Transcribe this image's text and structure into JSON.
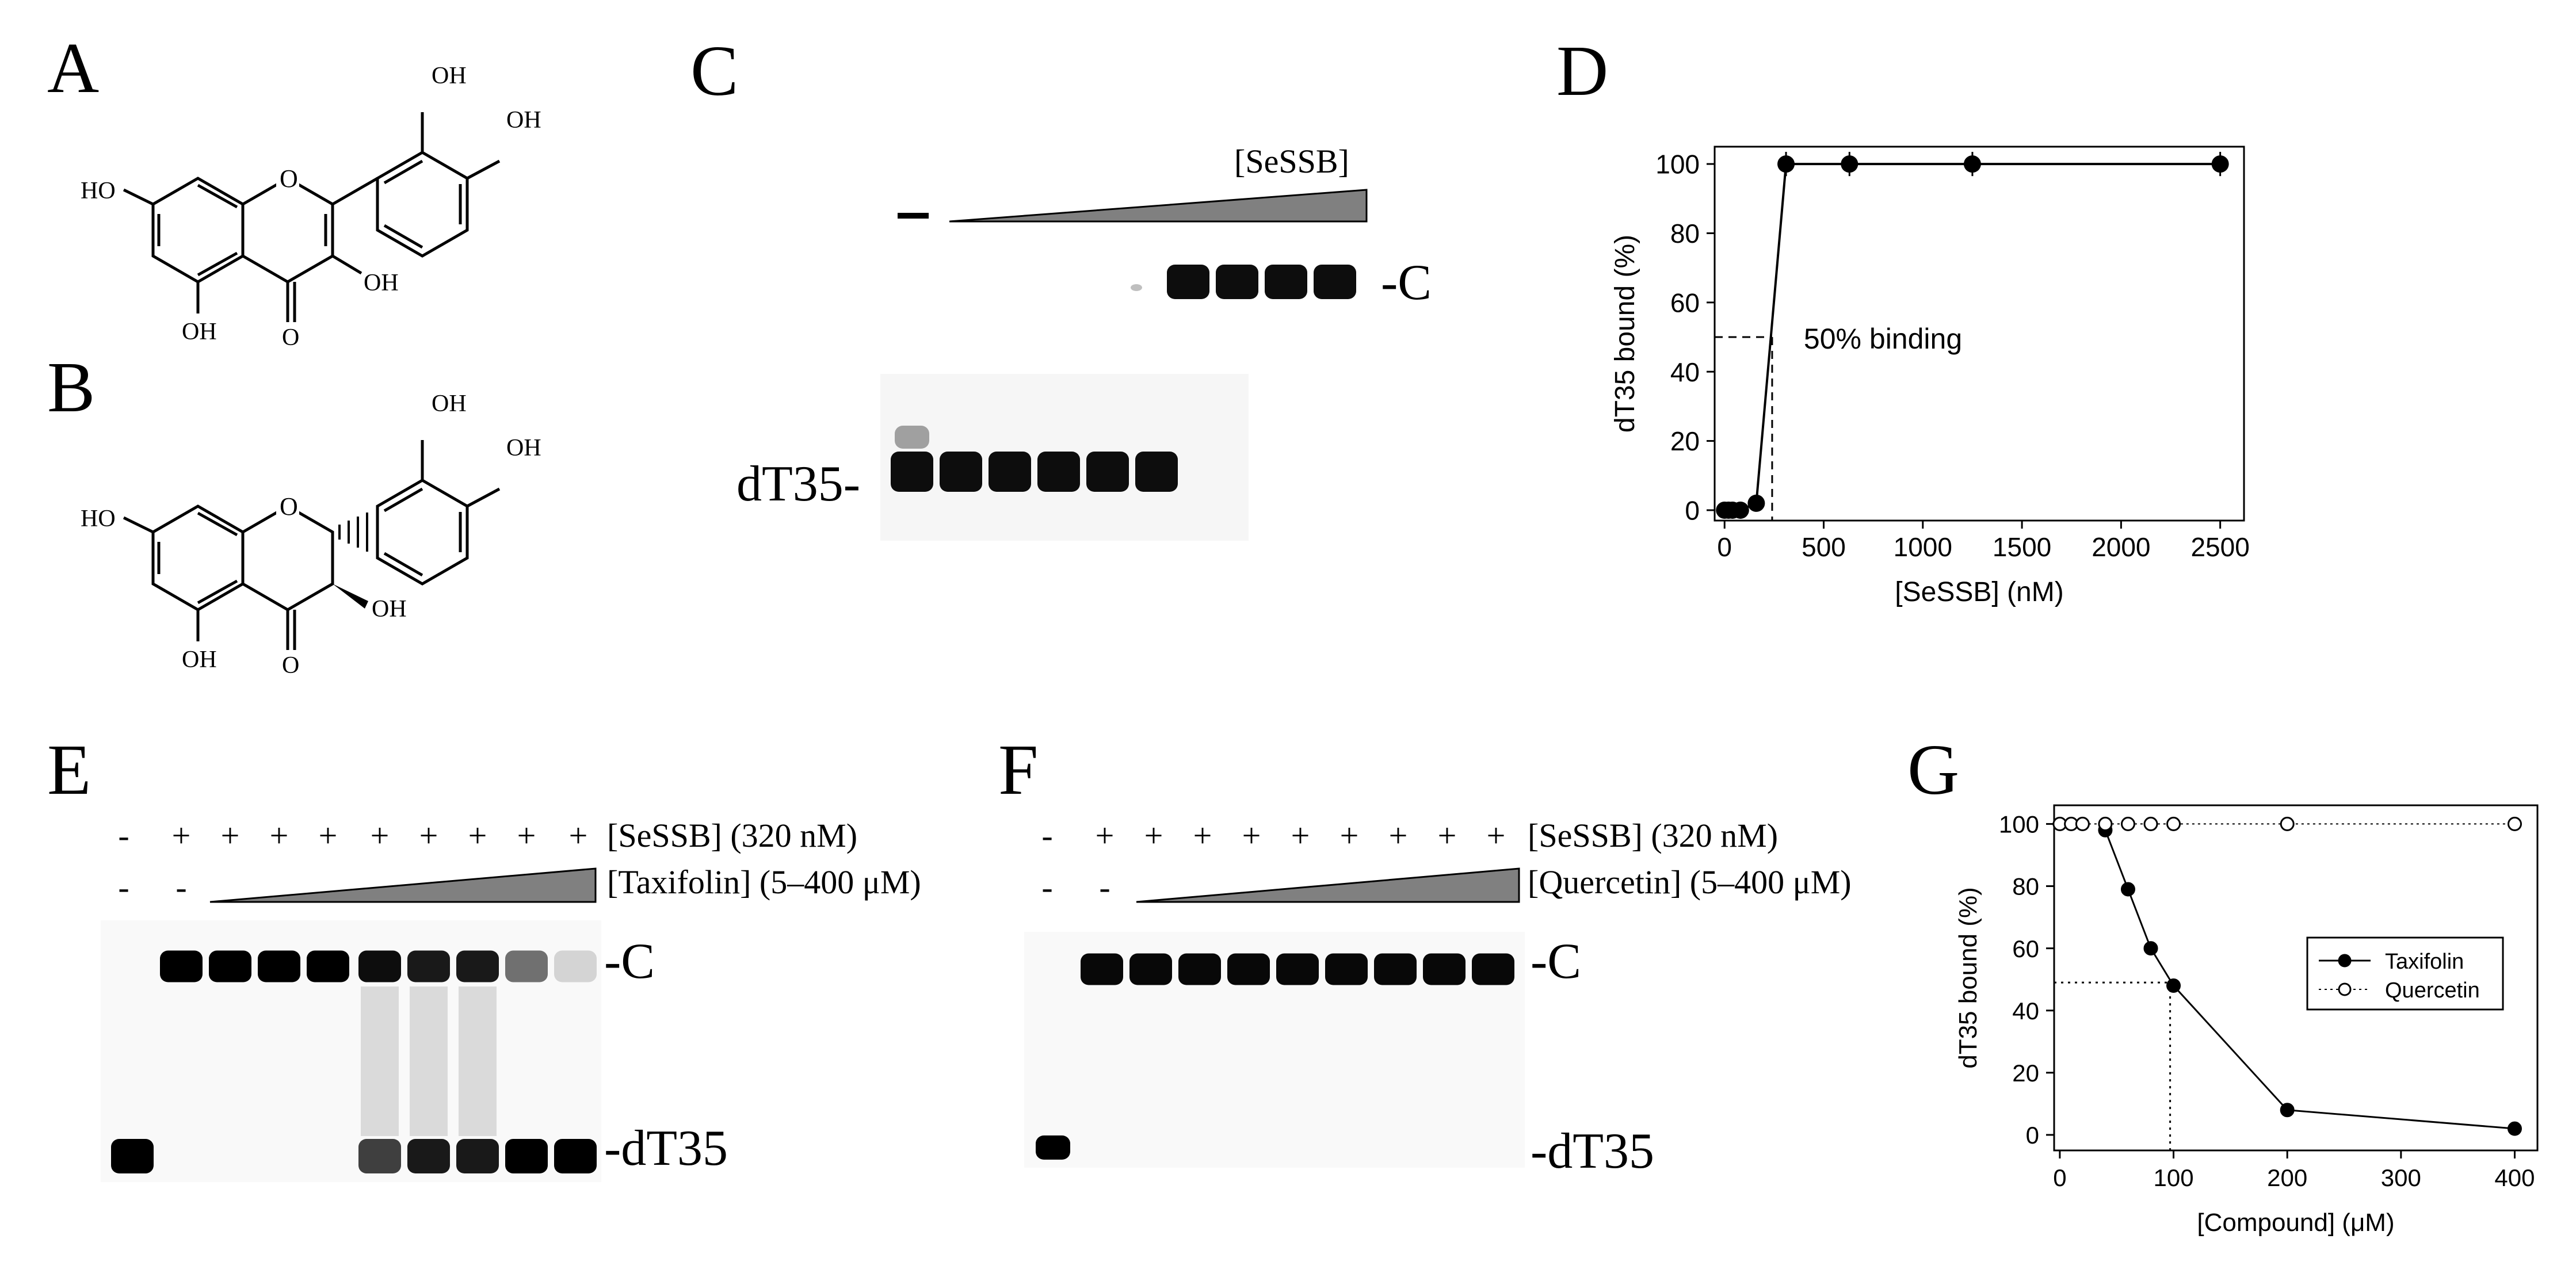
{
  "panels": {
    "A": {
      "label": "A",
      "substituents": [
        "OH",
        "OH",
        "HO",
        "OH",
        "OH",
        "O"
      ]
    },
    "B": {
      "label": "B",
      "substituents": [
        "OH",
        "OH",
        "HO",
        "OH",
        "OH",
        "O"
      ]
    },
    "C": {
      "label": "C",
      "minus_label": "–",
      "wedge_label": "[SeSSB]",
      "complex_label": "-C",
      "free_label": "dT35-"
    },
    "E": {
      "label": "E",
      "row1_signs": [
        "-",
        "+",
        "+",
        "+",
        "+",
        "+",
        "+",
        "+",
        "+",
        "+"
      ],
      "row1_label": "[SeSSB] (320 nM)",
      "row2_signs": [
        "-",
        "-"
      ],
      "row2_label": "[Taxifolin] (5–400 μM)",
      "complex_label": "-C",
      "free_label": "-dT35"
    },
    "F": {
      "label": "F",
      "row1_signs": [
        "-",
        "+",
        "+",
        "+",
        "+",
        "+",
        "+",
        "+",
        "+",
        "+"
      ],
      "row1_label": "[SeSSB] (320 nM)",
      "row2_signs": [
        "-",
        "-"
      ],
      "row2_label": "[Quercetin] (5–400 μM)",
      "complex_label": "-C",
      "free_label": "-dT35"
    }
  },
  "chart_data": [
    {
      "panel_label": "D",
      "type": "line",
      "xlabel": "[SeSSB] (nM)",
      "ylabel": "dT35 bound (%)",
      "xlim": [
        -50,
        2620
      ],
      "ylim": [
        -3,
        105
      ],
      "xticks": [
        0,
        500,
        1000,
        1500,
        2000,
        2500
      ],
      "yticks": [
        0,
        20,
        40,
        60,
        80,
        100
      ],
      "x": [
        0,
        20,
        40,
        80,
        160,
        310,
        630,
        1250,
        2500
      ],
      "y": [
        0,
        0,
        0,
        0,
        2,
        100,
        100,
        100,
        100
      ],
      "annotation": "50% binding",
      "ref_line": {
        "x": 240,
        "y": 50
      },
      "grid": false
    },
    {
      "panel_label": "G",
      "type": "line",
      "xlabel": "[Compound] (μM)",
      "ylabel": "dT35 bound (%)",
      "xlim": [
        -5,
        420
      ],
      "ylim": [
        -5,
        106
      ],
      "xticks": [
        0,
        100,
        200,
        300,
        400
      ],
      "yticks": [
        0,
        20,
        40,
        60,
        80,
        100
      ],
      "legend_position": "center-right",
      "series": [
        {
          "name": "Taxifolin",
          "marker": "filled",
          "linestyle": "solid",
          "x": [
            40,
            60,
            80,
            100,
            200,
            400
          ],
          "y": [
            98,
            79,
            60,
            48,
            8,
            2
          ]
        },
        {
          "name": "Quercetin",
          "marker": "open",
          "linestyle": "dotted",
          "x": [
            0,
            10,
            20,
            40,
            60,
            80,
            100,
            200,
            400
          ],
          "y": [
            100,
            100,
            100,
            100,
            100,
            100,
            100,
            100,
            100
          ]
        }
      ],
      "ref_line": {
        "x": 97,
        "y": 49
      },
      "grid": false
    }
  ]
}
